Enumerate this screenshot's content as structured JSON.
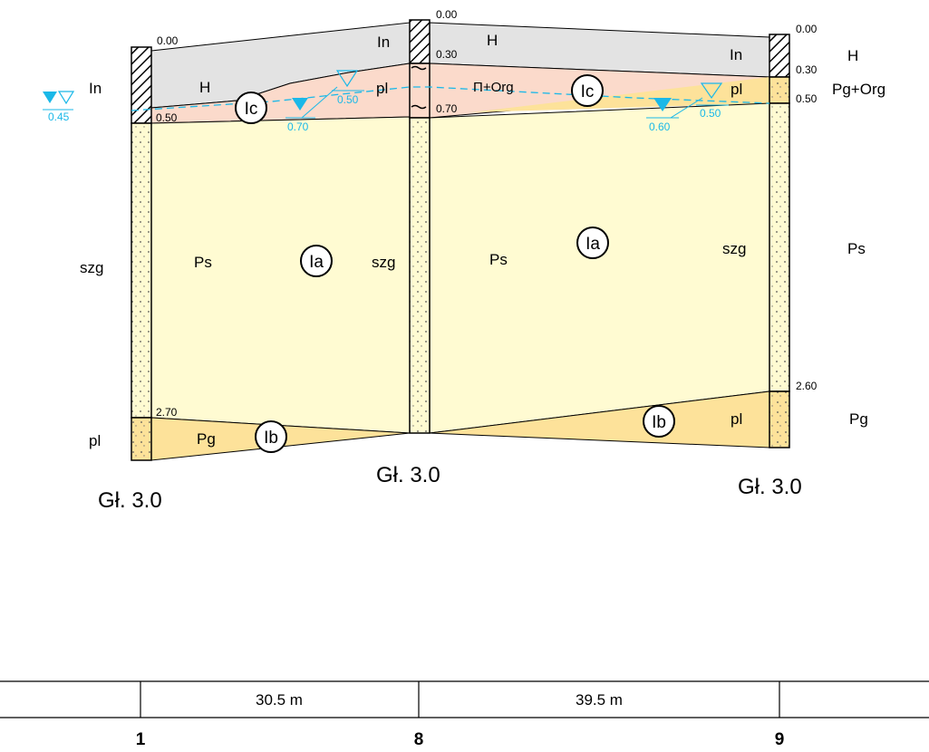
{
  "boreholes": [
    {
      "number": "1",
      "depth_label": "Gł. 3.0",
      "depth_marks": [
        "0.00",
        "0.50",
        "2.70"
      ],
      "left_soils": [
        "In",
        "szg",
        "pl"
      ],
      "layer_soils": [
        "H",
        "Ps",
        "Pg"
      ],
      "water": {
        "steady": "0.45"
      }
    },
    {
      "number": "8",
      "depth_label": "Gł. 3.0",
      "depth_marks": [
        "0.00",
        "0.30",
        "0.70"
      ],
      "left_soils": [
        "In",
        "pl",
        "szg"
      ],
      "layer_soils": [
        "H",
        "Π+Org",
        "Ps"
      ]
    },
    {
      "number": "9",
      "depth_label": "Gł. 3.0",
      "depth_marks": [
        "0.00",
        "0.30",
        "0.50",
        "2.60"
      ],
      "left_soils": [
        "In",
        "pl",
        "szg",
        "pl"
      ],
      "right_soils": [
        "H",
        "Pg+Org",
        "Ps",
        "Pg"
      ]
    }
  ],
  "water_between": [
    {
      "found": "0.70",
      "steady": "0.50"
    },
    {
      "found": "0.60",
      "steady": "0.50"
    }
  ],
  "geotechnical_layers": {
    "Ia_left": "Ia",
    "Ia_right": "Ia",
    "Ib_left": "Ib",
    "Ib_right": "Ib",
    "Ic_left": "Ic",
    "Ic_right": "Ic"
  },
  "distances": [
    "30.5 m",
    "39.5 m"
  ],
  "colors": {
    "embankment": "#e3e3e3",
    "organic": "#fbdacb",
    "sand_fine": "#fffbd2",
    "sand_silty": "#fde29a",
    "water": "#1ab8e8"
  }
}
